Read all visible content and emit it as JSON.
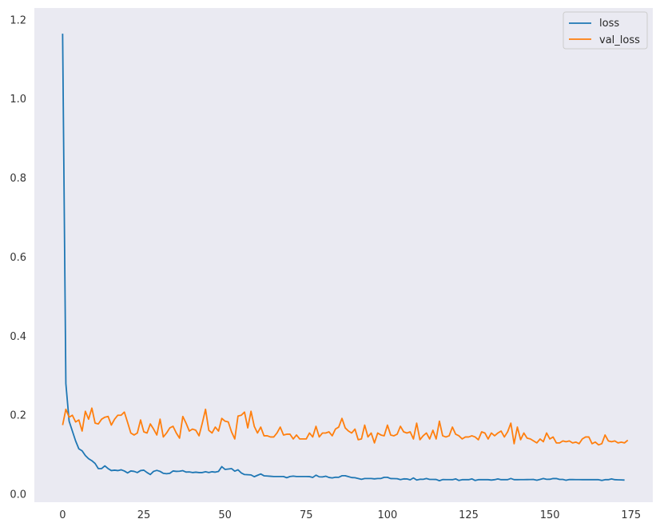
{
  "chart_data": {
    "type": "line",
    "title": "",
    "xlabel": "",
    "ylabel": "",
    "xlim": [
      -8.7,
      181.7
    ],
    "ylim": [
      -0.02,
      1.23
    ],
    "xticks": [
      0,
      25,
      50,
      75,
      100,
      125,
      150,
      175
    ],
    "yticks": [
      0.0,
      0.2,
      0.4,
      0.6,
      0.8,
      1.0,
      1.2
    ],
    "grid": false,
    "background": "#eaeaf2",
    "legend": {
      "position": "top-right"
    },
    "series": [
      {
        "name": "loss",
        "color": "#1f77b4",
        "anchors": [
          [
            0,
            1.165
          ],
          [
            1,
            0.28
          ],
          [
            2,
            0.185
          ],
          [
            3,
            0.16
          ],
          [
            4,
            0.135
          ],
          [
            5,
            0.115
          ],
          [
            6,
            0.11
          ],
          [
            7,
            0.098
          ],
          [
            8,
            0.09
          ],
          [
            9,
            0.085
          ],
          [
            10,
            0.078
          ],
          [
            11,
            0.065
          ],
          [
            12,
            0.065
          ],
          [
            13,
            0.072
          ],
          [
            14,
            0.065
          ],
          [
            15,
            0.06
          ],
          [
            16,
            0.06
          ],
          [
            18,
            0.06
          ],
          [
            20,
            0.058
          ],
          [
            22,
            0.058
          ],
          [
            25,
            0.058
          ],
          [
            28,
            0.055
          ],
          [
            30,
            0.058
          ],
          [
            32,
            0.052
          ],
          [
            35,
            0.058
          ],
          [
            40,
            0.055
          ],
          [
            45,
            0.055
          ],
          [
            48,
            0.058
          ],
          [
            49,
            0.07
          ],
          [
            50,
            0.063
          ],
          [
            52,
            0.065
          ],
          [
            54,
            0.058
          ],
          [
            56,
            0.05
          ],
          [
            60,
            0.048
          ],
          [
            65,
            0.045
          ],
          [
            70,
            0.045
          ],
          [
            75,
            0.045
          ],
          [
            80,
            0.044
          ],
          [
            85,
            0.043
          ],
          [
            87,
            0.047
          ],
          [
            90,
            0.04
          ],
          [
            100,
            0.04
          ],
          [
            110,
            0.038
          ],
          [
            120,
            0.037
          ],
          [
            130,
            0.037
          ],
          [
            140,
            0.037
          ],
          [
            150,
            0.038
          ],
          [
            160,
            0.037
          ],
          [
            170,
            0.037
          ],
          [
            173,
            0.036
          ]
        ],
        "jitter": [
          0.0,
          0.0,
          0.0,
          0.0,
          0.0,
          0.0,
          0.0,
          0.0,
          0.0,
          0.0,
          0.0,
          0.0,
          0.0,
          0.0,
          0.0,
          0.0,
          0.001,
          0.0,
          0.002,
          0.0,
          -0.004,
          0.001,
          0.0,
          -0.003,
          0.002,
          0.003,
          -0.002,
          -0.006,
          0.003,
          0.004,
          0.0,
          -0.002,
          0.0,
          -0.001,
          0.003,
          0.0,
          0.001,
          0.003,
          0.0,
          0.001,
          0.0,
          0.001,
          0.0,
          0.0,
          0.002,
          0.0,
          0.001,
          -0.001,
          0.0,
          0.0,
          0.0,
          0.0,
          0.0,
          -0.003,
          0.004,
          0.0,
          0.0,
          0.0,
          0.0,
          -0.004,
          0.0,
          0.004,
          0.0,
          0.0,
          0.0,
          0.0,
          0.0,
          0.0,
          0.0,
          -0.003,
          0.0,
          0.001,
          0.0,
          0.0,
          0.0,
          0.0,
          0.0,
          -0.002,
          0.004,
          0.0,
          0.0,
          0.002,
          -0.001,
          -0.002,
          0.0,
          0.0,
          0.002,
          0.0,
          0.0,
          0.0,
          0.002,
          0.0,
          -0.002,
          0.0,
          0.0,
          0.0,
          -0.001,
          0.0,
          0.0,
          0.003,
          0.003,
          0.0,
          0.0,
          0.0,
          -0.002,
          0.0,
          0.0,
          -0.002,
          0.003,
          -0.002,
          0.0,
          0.0,
          0.002,
          0.0,
          0.0,
          0.0,
          -0.003,
          0.0,
          0.0,
          0.0,
          0.0,
          0.002,
          -0.002,
          0.0,
          0.0,
          0.0,
          0.002,
          -0.002,
          0.0,
          0.0,
          0.0,
          0.0,
          -0.001,
          0.0,
          0.002,
          0.0,
          0.0,
          0.0,
          0.003,
          0.0,
          0.0,
          0.0,
          0.0,
          0.0,
          0.0,
          0.0,
          -0.002,
          0.0,
          0.002,
          0.0,
          0.0,
          0.002,
          0.002,
          0.0,
          0.0,
          -0.002,
          0.0,
          0.0,
          0.0,
          0.0,
          0.0,
          0.0,
          0.0,
          0.0,
          0.0,
          0.0,
          -0.002,
          0.0,
          0.0,
          0.002,
          0.0,
          0.0,
          0.0,
          0.0,
          0.0,
          0.0,
          0.0
        ]
      },
      {
        "name": "val_loss",
        "color": "#ff7f0e",
        "values": [
          0.175,
          0.215,
          0.195,
          0.2,
          0.183,
          0.188,
          0.16,
          0.21,
          0.19,
          0.218,
          0.18,
          0.178,
          0.19,
          0.195,
          0.197,
          0.175,
          0.19,
          0.2,
          0.2,
          0.208,
          0.182,
          0.155,
          0.15,
          0.155,
          0.188,
          0.158,
          0.155,
          0.178,
          0.165,
          0.15,
          0.19,
          0.145,
          0.155,
          0.168,
          0.172,
          0.155,
          0.142,
          0.197,
          0.18,
          0.16,
          0.165,
          0.162,
          0.148,
          0.18,
          0.215,
          0.162,
          0.155,
          0.17,
          0.16,
          0.192,
          0.185,
          0.183,
          0.158,
          0.14,
          0.198,
          0.2,
          0.208,
          0.168,
          0.21,
          0.172,
          0.155,
          0.17,
          0.148,
          0.148,
          0.145,
          0.145,
          0.155,
          0.17,
          0.15,
          0.152,
          0.152,
          0.14,
          0.15,
          0.14,
          0.14,
          0.14,
          0.155,
          0.145,
          0.172,
          0.145,
          0.155,
          0.155,
          0.158,
          0.148,
          0.165,
          0.17,
          0.192,
          0.168,
          0.16,
          0.155,
          0.165,
          0.138,
          0.14,
          0.175,
          0.145,
          0.155,
          0.13,
          0.155,
          0.15,
          0.148,
          0.175,
          0.15,
          0.148,
          0.152,
          0.172,
          0.158,
          0.155,
          0.158,
          0.14,
          0.18,
          0.138,
          0.148,
          0.155,
          0.14,
          0.162,
          0.14,
          0.185,
          0.148,
          0.145,
          0.148,
          0.17,
          0.152,
          0.148,
          0.14,
          0.145,
          0.145,
          0.148,
          0.145,
          0.138,
          0.158,
          0.155,
          0.14,
          0.155,
          0.148,
          0.155,
          0.16,
          0.145,
          0.158,
          0.18,
          0.128,
          0.17,
          0.138,
          0.155,
          0.142,
          0.14,
          0.135,
          0.13,
          0.14,
          0.133,
          0.155,
          0.14,
          0.145,
          0.13,
          0.13,
          0.135,
          0.133,
          0.135,
          0.13,
          0.132,
          0.128,
          0.14,
          0.145,
          0.145,
          0.128,
          0.132,
          0.125,
          0.128,
          0.15,
          0.135,
          0.133,
          0.135,
          0.13,
          0.132,
          0.13,
          0.137
        ]
      }
    ]
  }
}
